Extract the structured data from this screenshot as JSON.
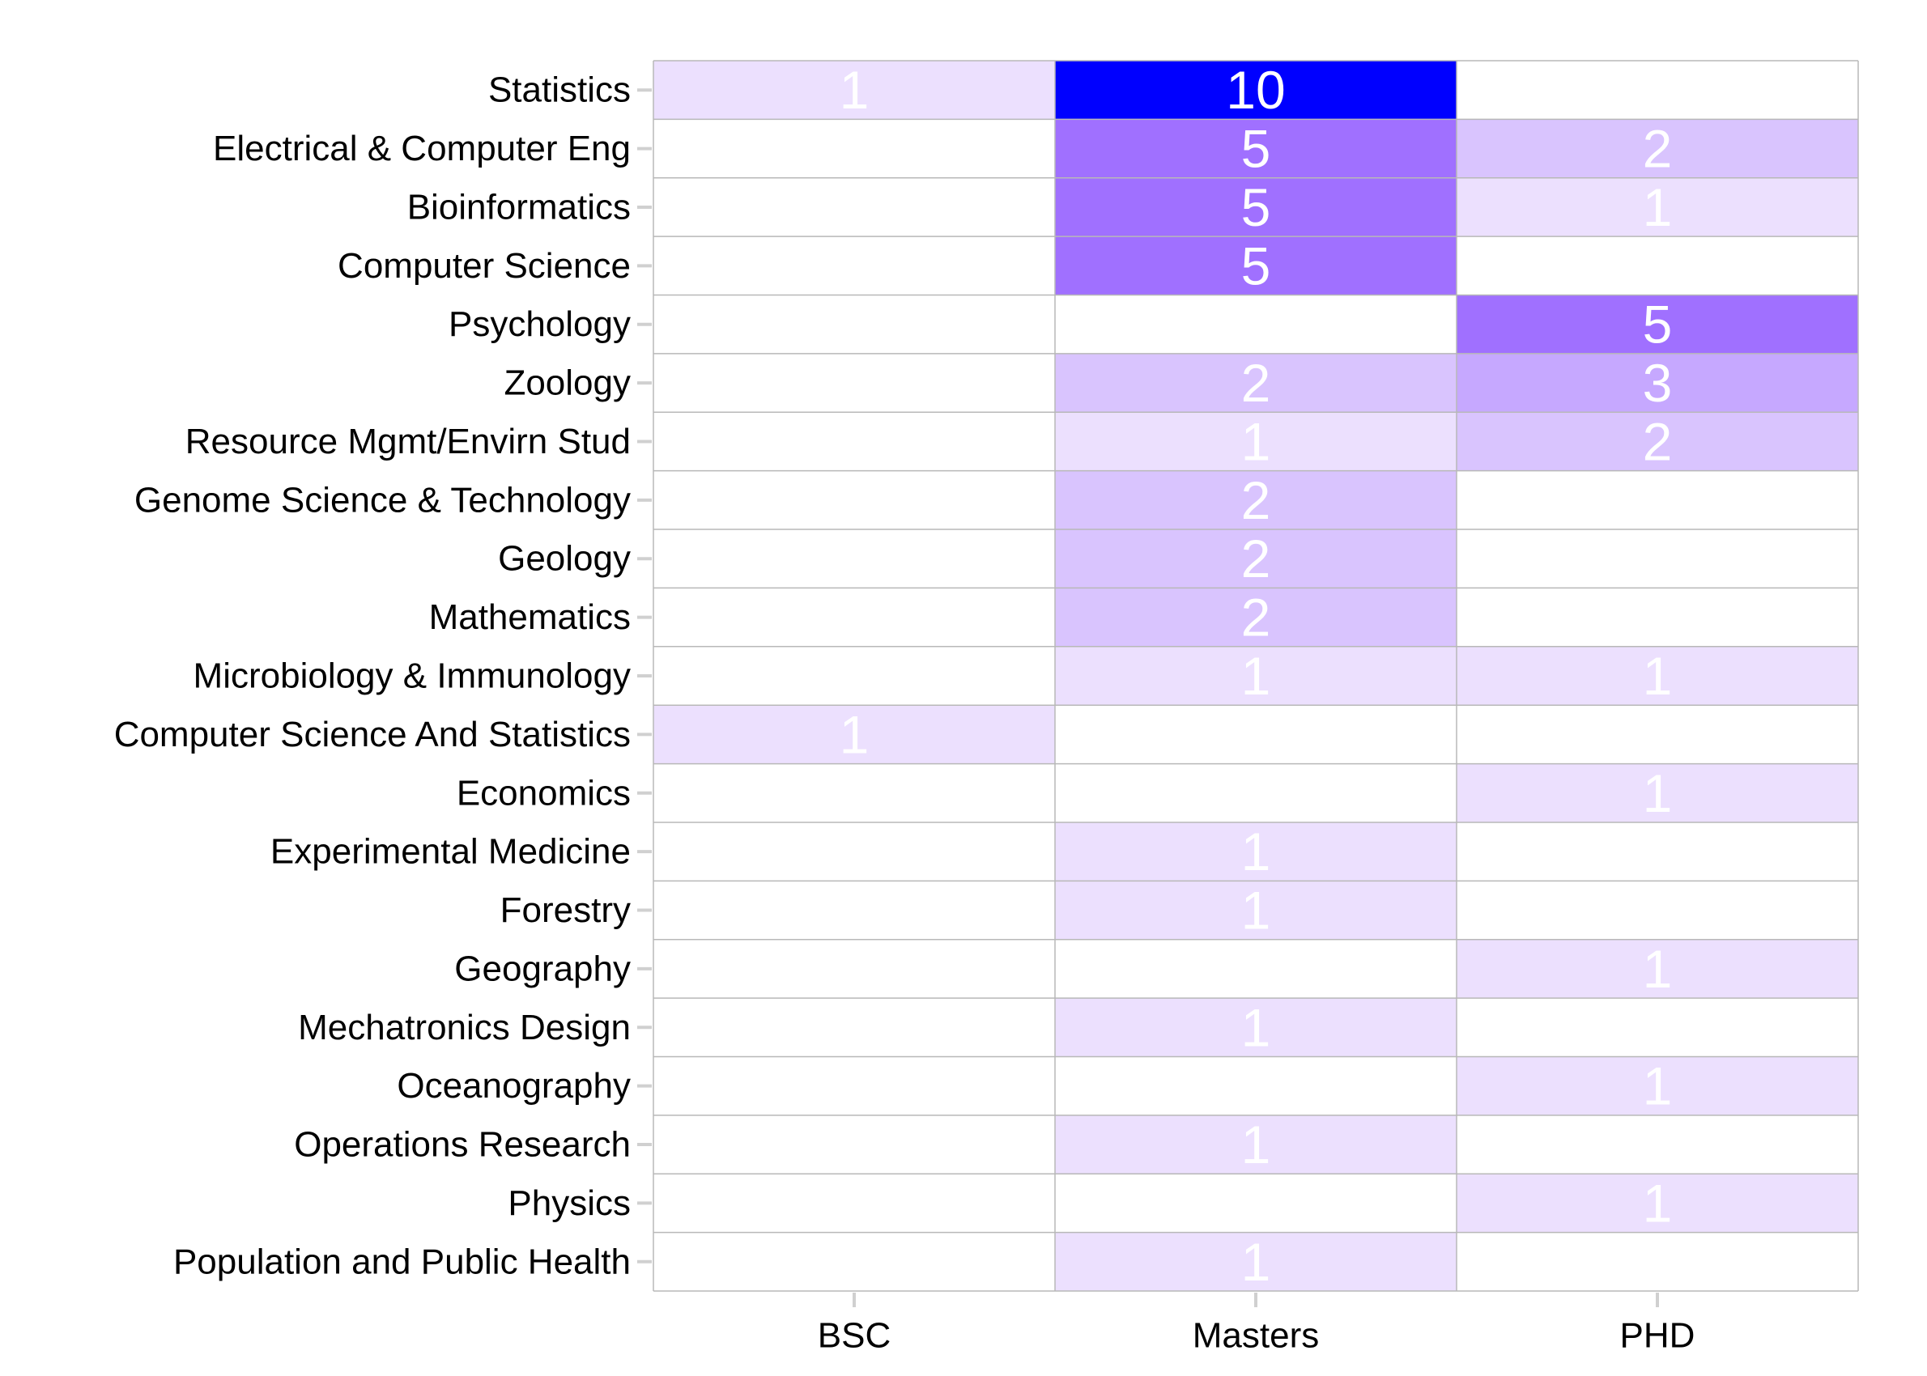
{
  "chart_data": {
    "type": "heatmap",
    "title": "",
    "xlabel": "",
    "ylabel": "",
    "x_categories": [
      "BSC",
      "Masters",
      "PHD"
    ],
    "y_categories": [
      "Statistics",
      "Electrical & Computer Eng",
      "Bioinformatics",
      "Computer Science",
      "Psychology",
      "Zoology",
      "Resource Mgmt/Envirn Stud",
      "Genome Science & Technology",
      "Geology",
      "Mathematics",
      "Microbiology & Immunology",
      "Computer Science And Statistics",
      "Economics",
      "Experimental Medicine",
      "Forestry",
      "Geography",
      "Mechatronics Design",
      "Oceanography",
      "Operations Research",
      "Physics",
      "Population and Public Health"
    ],
    "values": [
      [
        1,
        10,
        null
      ],
      [
        null,
        5,
        2
      ],
      [
        null,
        5,
        1
      ],
      [
        null,
        5,
        null
      ],
      [
        null,
        null,
        5
      ],
      [
        null,
        2,
        3
      ],
      [
        null,
        1,
        2
      ],
      [
        null,
        2,
        null
      ],
      [
        null,
        2,
        null
      ],
      [
        null,
        2,
        null
      ],
      [
        null,
        1,
        1
      ],
      [
        1,
        null,
        null
      ],
      [
        null,
        null,
        1
      ],
      [
        null,
        1,
        null
      ],
      [
        null,
        1,
        null
      ],
      [
        null,
        null,
        1
      ],
      [
        null,
        1,
        null
      ],
      [
        null,
        null,
        1
      ],
      [
        null,
        1,
        null
      ],
      [
        null,
        null,
        1
      ],
      [
        null,
        1,
        null
      ]
    ],
    "color_low": "#ece0fe",
    "color_mid": "#a070ff",
    "color_high": "#0000ff",
    "value_range": [
      1,
      10
    ],
    "grid": true,
    "legend": "none"
  }
}
